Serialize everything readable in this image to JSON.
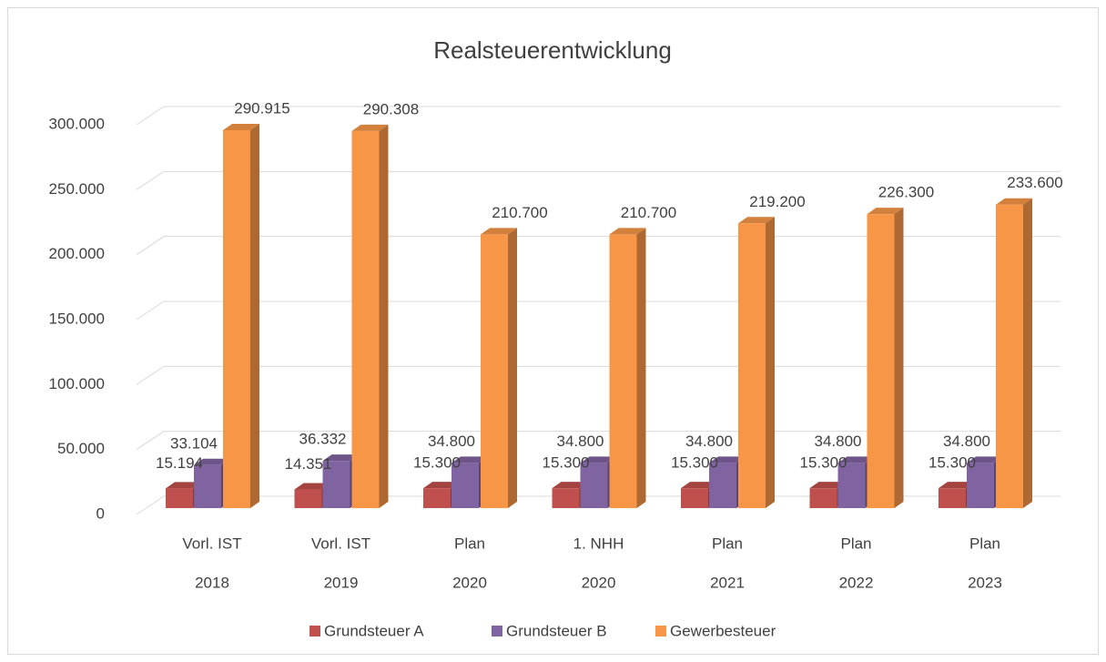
{
  "chart_data": {
    "type": "bar3d",
    "title": "Realsteuerentwicklung",
    "categories": [
      [
        "Vorl. IST",
        "2018"
      ],
      [
        "Vorl. IST",
        "2019"
      ],
      [
        "Plan",
        "2020"
      ],
      [
        "1. NHH",
        "2020"
      ],
      [
        "Plan",
        "2021"
      ],
      [
        "Plan",
        "2022"
      ],
      [
        "Plan",
        "2023"
      ]
    ],
    "series": [
      {
        "name": "Grundsteuer A",
        "color": "#c0504d",
        "values": [
          15194,
          14351,
          15300,
          15300,
          15300,
          15300,
          15300
        ],
        "value_labels": [
          "15.194",
          "14.351",
          "15.300",
          "15.300",
          "15.300",
          "15.300",
          "15.300"
        ]
      },
      {
        "name": "Grundsteuer B",
        "color": "#8064a2",
        "values": [
          33104,
          36332,
          34800,
          34800,
          34800,
          34800,
          34800
        ],
        "value_labels": [
          "33.104",
          "36.332",
          "34.800",
          "34.800",
          "34.800",
          "34.800",
          "34.800"
        ]
      },
      {
        "name": "Gewerbesteuer",
        "color": "#f79646",
        "values": [
          290915,
          290308,
          210700,
          210700,
          219200,
          226300,
          233600
        ],
        "value_labels": [
          "290.915",
          "290.308",
          "210.700",
          "210.700",
          "219.200",
          "226.300",
          "233.600"
        ]
      }
    ],
    "ylim": [
      0,
      300000
    ],
    "yticks": [
      0,
      {
        "value": 50000,
        "label": "50.000"
      },
      {
        "value": 100000,
        "label": "100.000"
      },
      {
        "value": 150000,
        "label": "150.000"
      },
      {
        "value": 200000,
        "label": "200.000"
      },
      {
        "value": 250000,
        "label": "250.000"
      },
      {
        "value": 300000,
        "label": "300.000"
      }
    ],
    "grid": true,
    "legend": "bottom"
  }
}
